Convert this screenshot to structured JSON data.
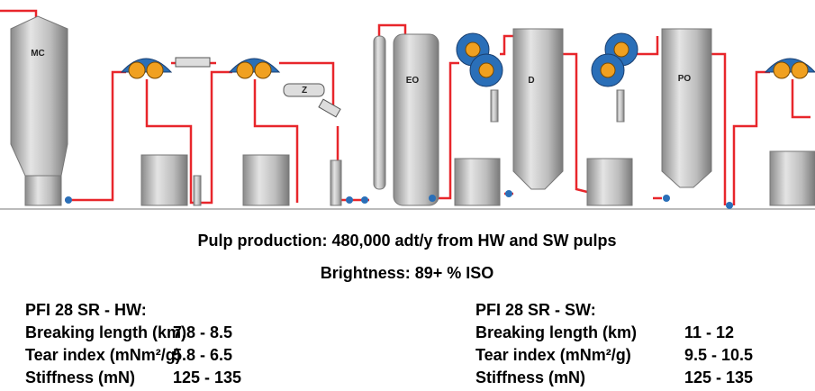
{
  "diagram": {
    "labels": [
      "MC",
      "Z",
      "EO",
      "D",
      "PO"
    ]
  },
  "production": "Pulp production: 480,000 adt/y from HW and SW pulps",
  "brightness": "Brightness: 89+ % ISO",
  "properties": [
    {
      "heading": "PFI 28 SR - HW:",
      "rows": [
        [
          "Breaking length (km)",
          "7.8 - 8.5"
        ],
        [
          "Tear index (mNm²/g)",
          "5.8 - 6.5"
        ],
        [
          "Stiffness (mN)",
          "125 - 135"
        ]
      ]
    },
    {
      "heading": "PFI 28 SR - SW:",
      "rows": [
        [
          "Breaking length (km)",
          "11 - 12"
        ],
        [
          "Tear index (mNm²/g)",
          "9.5 - 10.5"
        ],
        [
          "Stiffness (mN)",
          "125 - 135"
        ]
      ]
    }
  ]
}
